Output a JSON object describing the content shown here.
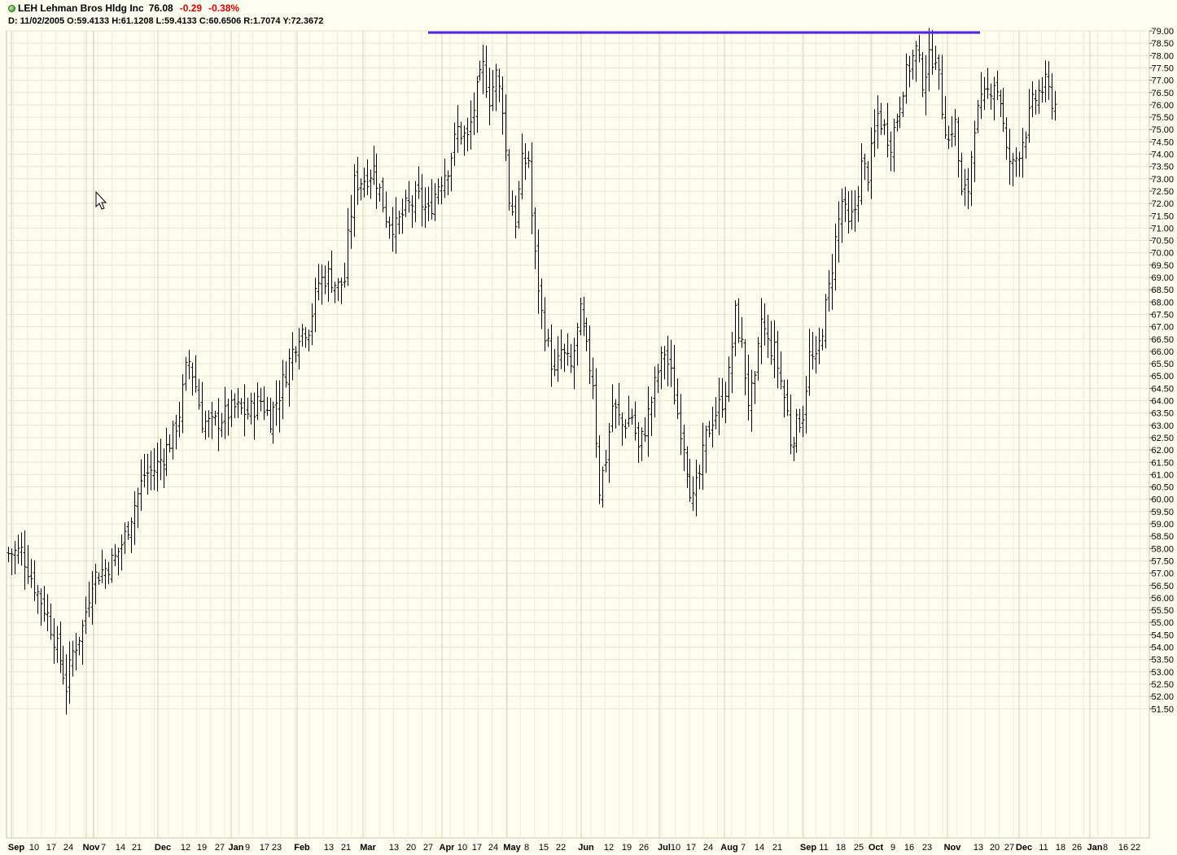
{
  "header": {
    "title": "LEH Lehman Bros Hldg Inc",
    "last": "76.08",
    "change": "-0.29",
    "change_pct": "-0.38%",
    "ohlc": "D: 11/02/2005 O:59.4133 H:61.1208 L:59.4133 C:60.6506 R:1.7074 Y:72.3672",
    "status_color": "#2a8a1a"
  },
  "chart_data": {
    "type": "ohlc-bar",
    "ylim": [
      51.25,
      79.0
    ],
    "yticks": [
      "79.00",
      "78.50",
      "78.00",
      "77.50",
      "77.00",
      "76.50",
      "76.00",
      "75.50",
      "75.00",
      "74.50",
      "74.00",
      "73.50",
      "73.00",
      "72.50",
      "72.00",
      "71.50",
      "71.00",
      "70.50",
      "70.00",
      "69.50",
      "69.00",
      "68.50",
      "68.00",
      "67.50",
      "67.00",
      "66.50",
      "66.00",
      "65.50",
      "65.00",
      "64.50",
      "64.00",
      "63.50",
      "63.00",
      "62.50",
      "62.00",
      "61.50",
      "61.00",
      "60.50",
      "60.00",
      "59.50",
      "59.00",
      "58.50",
      "58.00",
      "57.50",
      "57.00",
      "56.50",
      "56.00",
      "55.50",
      "55.00",
      "54.50",
      "54.00",
      "53.50",
      "53.00",
      "52.50",
      "52.00",
      "51.50"
    ],
    "xticks": [
      {
        "label": "Sep",
        "month": true
      },
      {
        "label": "10"
      },
      {
        "label": "17"
      },
      {
        "label": "24"
      },
      {
        "label": "Nov",
        "month": true
      },
      {
        "label": "7"
      },
      {
        "label": "14"
      },
      {
        "label": "21"
      },
      {
        "label": "Dec",
        "month": true
      },
      {
        "label": "12"
      },
      {
        "label": "19"
      },
      {
        "label": "27"
      },
      {
        "label": "Jan",
        "month": true
      },
      {
        "label": "9"
      },
      {
        "label": "17"
      },
      {
        "label": "23"
      },
      {
        "label": "Feb",
        "month": true
      },
      {
        "label": "13"
      },
      {
        "label": "21"
      },
      {
        "label": "Mar",
        "month": true
      },
      {
        "label": "13"
      },
      {
        "label": "20"
      },
      {
        "label": "27"
      },
      {
        "label": "Apr",
        "month": true
      },
      {
        "label": "10"
      },
      {
        "label": "17"
      },
      {
        "label": "24"
      },
      {
        "label": "May",
        "month": true
      },
      {
        "label": "8"
      },
      {
        "label": "15"
      },
      {
        "label": "22"
      },
      {
        "label": "Jun",
        "month": true
      },
      {
        "label": "12"
      },
      {
        "label": "19"
      },
      {
        "label": "26"
      },
      {
        "label": "Jul",
        "month": true
      },
      {
        "label": "10"
      },
      {
        "label": "17"
      },
      {
        "label": "24"
      },
      {
        "label": "Aug",
        "month": true
      },
      {
        "label": "7"
      },
      {
        "label": "14"
      },
      {
        "label": "21"
      },
      {
        "label": "Sep",
        "month": true
      },
      {
        "label": "11"
      },
      {
        "label": "18"
      },
      {
        "label": "25"
      },
      {
        "label": "Oct",
        "month": true
      },
      {
        "label": "9"
      },
      {
        "label": "16"
      },
      {
        "label": "23"
      },
      {
        "label": "Nov",
        "month": true
      },
      {
        "label": "13"
      },
      {
        "label": "20"
      },
      {
        "label": "27"
      },
      {
        "label": "Dec",
        "month": true
      },
      {
        "label": "11"
      },
      {
        "label": "18"
      },
      {
        "label": "26"
      },
      {
        "label": "Jan",
        "month": true
      },
      {
        "label": "8"
      },
      {
        "label": "16"
      },
      {
        "label": "22"
      }
    ],
    "resistance_line": {
      "y": 78.9,
      "color": "#5a1ee6"
    },
    "price_bar_color": "#000000",
    "cursor_icon": "arrow-cursor-icon",
    "anchors": [
      [
        0,
        57.8
      ],
      [
        4,
        57.9
      ],
      [
        8,
        56.5
      ],
      [
        12,
        55.3
      ],
      [
        16,
        53.5
      ],
      [
        18,
        52.4
      ],
      [
        20,
        53.8
      ],
      [
        23,
        54.8
      ],
      [
        26,
        56.8
      ],
      [
        30,
        57.2
      ],
      [
        33,
        57.6
      ],
      [
        36,
        58.5
      ],
      [
        39,
        59.8
      ],
      [
        42,
        61.0
      ],
      [
        45,
        61.2
      ],
      [
        48,
        61.8
      ],
      [
        51,
        62.6
      ],
      [
        53,
        63.5
      ],
      [
        55,
        65.2
      ],
      [
        56,
        65.6
      ],
      [
        58,
        64.6
      ],
      [
        60,
        63.2
      ],
      [
        63,
        63.0
      ],
      [
        66,
        63.3
      ],
      [
        70,
        63.7
      ],
      [
        74,
        63.5
      ],
      [
        78,
        64.0
      ],
      [
        81,
        63.3
      ],
      [
        84,
        64.3
      ],
      [
        87,
        65.6
      ],
      [
        90,
        66.8
      ],
      [
        93,
        67.0
      ],
      [
        96,
        68.8
      ],
      [
        99,
        69.1
      ],
      [
        102,
        68.6
      ],
      [
        104,
        68.9
      ],
      [
        105,
        70.5
      ],
      [
        107,
        72.8
      ],
      [
        110,
        73.0
      ],
      [
        113,
        73.4
      ],
      [
        115,
        72.5
      ],
      [
        117,
        71.5
      ],
      [
        120,
        71.0
      ],
      [
        123,
        71.8
      ],
      [
        127,
        72.2
      ],
      [
        130,
        71.6
      ],
      [
        133,
        72.8
      ],
      [
        136,
        73.5
      ],
      [
        139,
        75.0
      ],
      [
        142,
        74.6
      ],
      [
        145,
        76.5
      ],
      [
        147,
        77.5
      ],
      [
        149,
        76.3
      ],
      [
        151,
        77.2
      ],
      [
        153,
        76.0
      ],
      [
        155,
        72.2
      ],
      [
        157,
        71.3
      ],
      [
        159,
        73.6
      ],
      [
        161,
        73.8
      ],
      [
        162,
        71.5
      ],
      [
        163,
        69.8
      ],
      [
        165,
        67.5
      ],
      [
        167,
        66.2
      ],
      [
        169,
        65.0
      ],
      [
        171,
        66.0
      ],
      [
        174,
        65.3
      ],
      [
        177,
        67.5
      ],
      [
        179,
        66.0
      ],
      [
        181,
        64.8
      ],
      [
        182,
        62.5
      ],
      [
        183,
        60.4
      ],
      [
        185,
        61.7
      ],
      [
        187,
        63.8
      ],
      [
        190,
        63.0
      ],
      [
        193,
        63.4
      ],
      [
        195,
        62.0
      ],
      [
        197,
        62.9
      ],
      [
        199,
        64.0
      ],
      [
        201,
        65.2
      ],
      [
        203,
        66.0
      ],
      [
        205,
        65.0
      ],
      [
        207,
        63.5
      ],
      [
        209,
        62.3
      ],
      [
        211,
        60.5
      ],
      [
        212,
        59.9
      ],
      [
        214,
        61.0
      ],
      [
        216,
        62.5
      ],
      [
        218,
        63.3
      ],
      [
        221,
        64.0
      ],
      [
        223,
        65.0
      ],
      [
        225,
        67.5
      ],
      [
        227,
        66.2
      ],
      [
        229,
        64.0
      ],
      [
        231,
        64.6
      ],
      [
        233,
        67.3
      ],
      [
        235,
        66.3
      ],
      [
        237,
        66.0
      ],
      [
        239,
        64.8
      ],
      [
        241,
        63.5
      ],
      [
        242,
        62.4
      ],
      [
        244,
        63.0
      ],
      [
        246,
        63.5
      ],
      [
        248,
        65.8
      ],
      [
        250,
        65.5
      ],
      [
        252,
        67.0
      ],
      [
        254,
        68.5
      ],
      [
        256,
        70.5
      ],
      [
        258,
        72.1
      ],
      [
        260,
        71.0
      ],
      [
        262,
        71.8
      ],
      [
        264,
        73.5
      ],
      [
        266,
        73.2
      ],
      [
        269,
        75.6
      ],
      [
        271,
        75.0
      ],
      [
        273,
        74.5
      ],
      [
        275,
        75.5
      ],
      [
        277,
        76.8
      ],
      [
        279,
        77.6
      ],
      [
        281,
        78.2
      ],
      [
        283,
        77.0
      ],
      [
        285,
        77.8
      ],
      [
        287,
        78.1
      ],
      [
        289,
        75.9
      ],
      [
        291,
        74.5
      ],
      [
        292,
        75.1
      ],
      [
        293,
        75.2
      ],
      [
        295,
        72.3
      ],
      [
        297,
        72.6
      ],
      [
        299,
        75.3
      ],
      [
        301,
        76.0
      ],
      [
        303,
        76.5
      ],
      [
        305,
        77.0
      ],
      [
        307,
        76.2
      ],
      [
        309,
        74.0
      ],
      [
        311,
        73.5
      ],
      [
        313,
        74.2
      ],
      [
        315,
        75.0
      ],
      [
        317,
        76.0
      ],
      [
        319,
        76.5
      ],
      [
        321,
        76.8
      ],
      [
        323,
        76.2
      ],
      [
        324,
        76.0
      ]
    ]
  }
}
